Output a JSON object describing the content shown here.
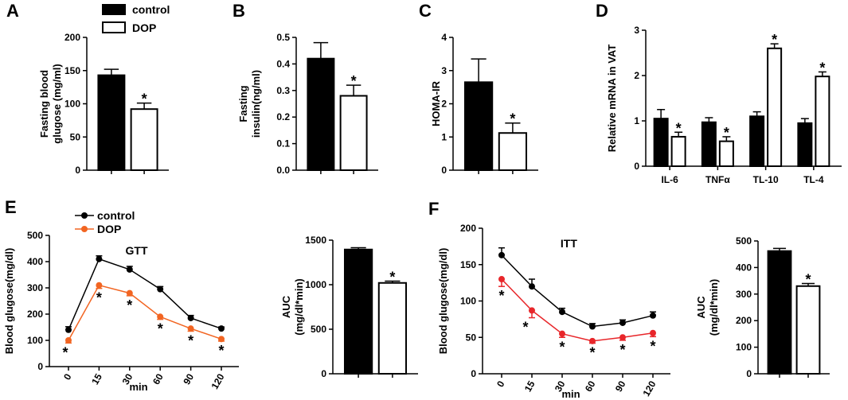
{
  "legend_top": {
    "control": "control",
    "dop": "DOP"
  },
  "chart_data": [
    {
      "panel": "A",
      "type": "bar",
      "categories": [
        "control",
        "DOP"
      ],
      "values": [
        143,
        92
      ],
      "errors": [
        9,
        9
      ],
      "significant": [
        false,
        true
      ],
      "sig_label": "*",
      "ylabel": "Fasting blood glugose (mg/ml)",
      "ylabel_lines": [
        "Fasting blood",
        "glugose (mg/ml)"
      ],
      "ylim": [
        0,
        200
      ],
      "yticks": [
        0,
        50,
        100,
        150,
        200
      ],
      "ytick_labels": [
        "0",
        "50",
        "100",
        "150",
        "200"
      ]
    },
    {
      "panel": "B",
      "type": "bar",
      "categories": [
        "control",
        "DOP"
      ],
      "values": [
        0.42,
        0.28
      ],
      "errors": [
        0.06,
        0.04
      ],
      "significant": [
        false,
        true
      ],
      "sig_label": "*",
      "ylabel": "Fasting insulin(ng/ml)",
      "ylabel_lines": [
        "Fasting",
        "insulin(ng/ml)"
      ],
      "ylim": [
        0,
        0.5
      ],
      "yticks": [
        0,
        0.1,
        0.2,
        0.3,
        0.4,
        0.5
      ],
      "ytick_labels": [
        "0.0",
        "0.1",
        "0.2",
        "0.3",
        "0.4",
        "0.5"
      ]
    },
    {
      "panel": "C",
      "type": "bar",
      "categories": [
        "control",
        "DOP"
      ],
      "values": [
        2.65,
        1.12
      ],
      "errors": [
        0.7,
        0.3
      ],
      "significant": [
        false,
        true
      ],
      "sig_label": "*",
      "ylabel": "HOMA-IR",
      "ylabel_lines": [
        "HOMA-IR"
      ],
      "ylim": [
        0,
        4
      ],
      "yticks": [
        0,
        1,
        2,
        3,
        4
      ],
      "ytick_labels": [
        "0",
        "1",
        "2",
        "3",
        "4"
      ]
    },
    {
      "panel": "D",
      "type": "grouped-bar",
      "categories": [
        "IL-6",
        "TNFα",
        "TL-10",
        "TL-4"
      ],
      "series": [
        {
          "name": "control",
          "values": [
            1.05,
            0.97,
            1.1,
            0.95
          ],
          "errors": [
            0.2,
            0.1,
            0.1,
            0.1
          ]
        },
        {
          "name": "DOP",
          "values": [
            0.65,
            0.55,
            2.6,
            1.98
          ],
          "errors": [
            0.1,
            0.1,
            0.1,
            0.1
          ]
        }
      ],
      "significant": [
        true,
        true,
        true,
        true
      ],
      "sig_label": "*",
      "ylabel": "Relative mRNA  in VAT",
      "ylim": [
        0,
        3
      ],
      "yticks": [
        0,
        1,
        2,
        3
      ],
      "ytick_labels": [
        "0",
        "1",
        "2",
        "3"
      ]
    },
    {
      "panel": "E",
      "type": "line",
      "title": "GTT",
      "x": [
        0,
        15,
        30,
        60,
        90,
        120
      ],
      "xtick_labels": [
        "0",
        "15",
        "30",
        "60",
        "90",
        "120"
      ],
      "series": [
        {
          "name": "control",
          "color": "#000000",
          "values": [
            140,
            410,
            370,
            295,
            185,
            145
          ],
          "errors": [
            12,
            12,
            12,
            10,
            10,
            6
          ]
        },
        {
          "name": "DOP",
          "color": "#f26522",
          "values": [
            100,
            310,
            280,
            190,
            145,
            105
          ],
          "errors": [
            10,
            12,
            10,
            10,
            10,
            8
          ]
        }
      ],
      "significant": [
        true,
        true,
        true,
        true,
        true,
        true
      ],
      "sig_label": "*",
      "xlabel": "min",
      "ylabel": "Blood glugose(mg/dl)",
      "ylim": [
        0,
        500
      ],
      "yticks": [
        0,
        100,
        200,
        300,
        400,
        500
      ],
      "ytick_labels": [
        "0",
        "100",
        "200",
        "300",
        "400",
        "500"
      ]
    },
    {
      "panel": "E2",
      "type": "bar",
      "categories": [
        "control",
        "DOP"
      ],
      "values": [
        1395,
        1020
      ],
      "errors": [
        20,
        20
      ],
      "significant": [
        false,
        true
      ],
      "sig_label": "*",
      "ylabel": "AUC (mg/dl*min)",
      "ylabel_lines": [
        "AUC",
        "(mg/dl*min)"
      ],
      "ylim": [
        0,
        1500
      ],
      "yticks": [
        0,
        500,
        1000,
        1500
      ],
      "ytick_labels": [
        "0",
        "500",
        "1000",
        "1500"
      ]
    },
    {
      "panel": "F",
      "type": "line",
      "title": "ITT",
      "x": [
        0,
        15,
        30,
        60,
        90,
        120
      ],
      "xtick_labels": [
        "0",
        "15",
        "30",
        "60",
        "90",
        "120"
      ],
      "series": [
        {
          "name": "control",
          "color": "#000000",
          "values": [
            163,
            120,
            85,
            65,
            70,
            80
          ],
          "errors": [
            10,
            10,
            5,
            4,
            4,
            5
          ]
        },
        {
          "name": "DOP",
          "color": "#e8262a",
          "values": [
            130,
            87,
            55,
            45,
            50,
            56
          ],
          "errors": [
            10,
            10,
            5,
            3,
            4,
            5
          ]
        }
      ],
      "significant": [
        true,
        true,
        true,
        true,
        true,
        true
      ],
      "sig_label": "*",
      "xlabel": "min",
      "ylabel": "Blood glugose(mg/dl)",
      "ylim": [
        0,
        200
      ],
      "yticks": [
        0,
        50,
        100,
        150,
        200
      ],
      "ytick_labels": [
        "0",
        "50",
        "100",
        "150",
        "200"
      ]
    },
    {
      "panel": "F2",
      "type": "bar",
      "categories": [
        "control",
        "DOP"
      ],
      "values": [
        462,
        330
      ],
      "errors": [
        10,
        10
      ],
      "significant": [
        false,
        true
      ],
      "sig_label": "*",
      "ylabel": "AUC (mg/dl*min)",
      "ylabel_lines": [
        "AUC",
        "(mg/dl*min)"
      ],
      "ylim": [
        0,
        500
      ],
      "yticks": [
        0,
        100,
        200,
        300,
        400,
        500
      ],
      "ytick_labels": [
        "0",
        "100",
        "200",
        "300",
        "400",
        "500"
      ]
    }
  ]
}
